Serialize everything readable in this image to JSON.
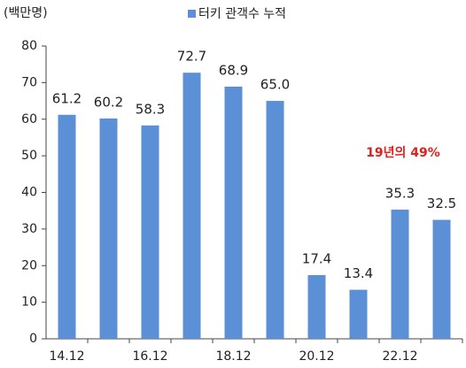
{
  "chart_data": {
    "type": "bar",
    "y_label": "(백만명)",
    "annotation": "19년의 49%",
    "categories": [
      "14.12",
      null,
      "16.12",
      null,
      "18.12",
      null,
      "20.12",
      null,
      "22.12",
      null
    ],
    "series": [
      {
        "name": "터키 관객수 누적",
        "color": "#5b8fd6",
        "values": [
          61.2,
          60.2,
          58.3,
          72.7,
          68.9,
          65.0,
          17.4,
          13.4,
          35.3,
          32.5
        ],
        "value_labels": [
          "61.2",
          "60.2",
          "58.3",
          "72.7",
          "68.9",
          "65.0",
          "17.4",
          "13.4",
          "35.3",
          "32.5"
        ]
      }
    ],
    "ylim": [
      0,
      80
    ],
    "yticks": [
      0,
      10,
      20,
      30,
      40,
      50,
      60,
      70,
      80
    ],
    "grid": false,
    "annotation_color": "#e0201c"
  }
}
